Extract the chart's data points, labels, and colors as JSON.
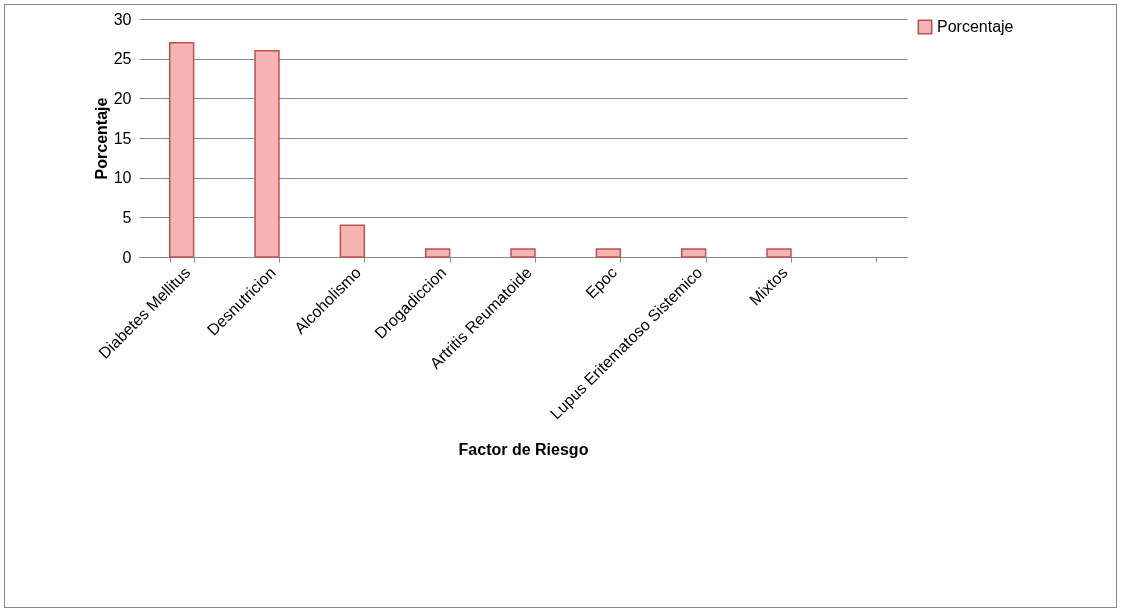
{
  "chart_data": {
    "type": "bar",
    "xlabel": "Factor de Riesgo",
    "ylabel": "Porcentaje",
    "categories": [
      "Diabetes Mellitus",
      "Desnutricion",
      "Alcoholismo",
      "Drogadiccion",
      "Artritis Reumatoide",
      "Epoc",
      "Lupus Eritematoso Sistemico",
      "Mixtos",
      null
    ],
    "series": [
      {
        "name": "Porcentaje",
        "color": "#f4b4b3",
        "values": [
          27,
          26,
          4,
          1,
          1,
          1,
          1,
          1,
          null
        ]
      }
    ],
    "ylim": [
      0,
      30
    ],
    "yticks": [
      0,
      5,
      10,
      15,
      20,
      25,
      30
    ],
    "grid": "y",
    "legend": "right"
  }
}
